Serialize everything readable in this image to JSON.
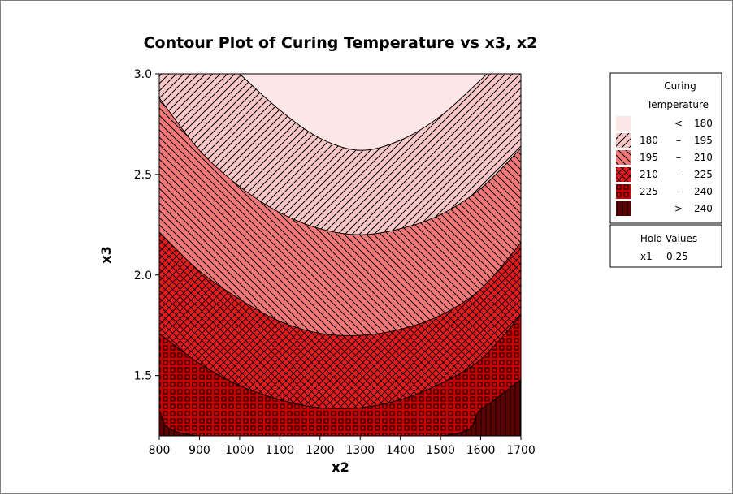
{
  "chart_data": {
    "type": "contour",
    "title": "Contour Plot of Curing Temperature vs x3, x2",
    "xlabel": "x2",
    "ylabel": "x3",
    "xlim": [
      800,
      1700
    ],
    "ylim": [
      1.2,
      3.0
    ],
    "x_ticks": [
      800,
      900,
      1000,
      1100,
      1200,
      1300,
      1400,
      1500,
      1600,
      1700
    ],
    "y_ticks": [
      1.5,
      2.0,
      2.5,
      3.0
    ],
    "y_tick_labels": [
      "1.5",
      "2.0",
      "2.5",
      "3.0"
    ],
    "grid": false,
    "legend_position": "right",
    "legend": {
      "title_line1": "Curing",
      "title_line2": "Temperature",
      "entries": [
        {
          "low": "",
          "sep": "<",
          "high": "180",
          "color": "#fde6e6",
          "pattern": "solid"
        },
        {
          "low": "180",
          "sep": "–",
          "high": "195",
          "color": "#f9c7c7",
          "pattern": "diag-fwd"
        },
        {
          "low": "195",
          "sep": "–",
          "high": "210",
          "color": "#f47878",
          "pattern": "diag-back"
        },
        {
          "low": "210",
          "sep": "–",
          "high": "225",
          "color": "#e61b1b",
          "pattern": "crosshatch"
        },
        {
          "low": "225",
          "sep": "–",
          "high": "240",
          "color": "#c80000",
          "pattern": "squares"
        },
        {
          "low": "",
          "sep": ">",
          "high": "240",
          "color": "#5e0000",
          "pattern": "vertical"
        }
      ]
    },
    "hold_values": {
      "title": "Hold Values",
      "variable": "x1",
      "value": "0.25"
    },
    "contours": [
      {
        "level": 180,
        "points": [
          [
            1000,
            3.0
          ],
          [
            1100,
            2.82
          ],
          [
            1200,
            2.68
          ],
          [
            1300,
            2.62
          ],
          [
            1400,
            2.67
          ],
          [
            1500,
            2.79
          ],
          [
            1600,
            2.97
          ],
          [
            1615,
            3.0
          ]
        ]
      },
      {
        "level": 195,
        "points": [
          [
            800,
            2.88
          ],
          [
            900,
            2.62
          ],
          [
            1000,
            2.44
          ],
          [
            1100,
            2.31
          ],
          [
            1200,
            2.23
          ],
          [
            1300,
            2.2
          ],
          [
            1400,
            2.23
          ],
          [
            1500,
            2.3
          ],
          [
            1600,
            2.43
          ],
          [
            1700,
            2.63
          ]
        ]
      },
      {
        "level": 210,
        "points": [
          [
            800,
            2.21
          ],
          [
            900,
            2.02
          ],
          [
            1000,
            1.88
          ],
          [
            1100,
            1.77
          ],
          [
            1200,
            1.71
          ],
          [
            1300,
            1.7
          ],
          [
            1400,
            1.73
          ],
          [
            1500,
            1.8
          ],
          [
            1600,
            1.93
          ],
          [
            1700,
            2.16
          ]
        ]
      },
      {
        "level": 225,
        "points": [
          [
            800,
            1.71
          ],
          [
            900,
            1.56
          ],
          [
            1000,
            1.45
          ],
          [
            1100,
            1.38
          ],
          [
            1200,
            1.34
          ],
          [
            1300,
            1.34
          ],
          [
            1400,
            1.38
          ],
          [
            1500,
            1.46
          ],
          [
            1600,
            1.58
          ],
          [
            1700,
            1.8
          ]
        ]
      },
      {
        "level": 240,
        "points": [
          [
            800,
            1.32
          ],
          [
            900,
            1.2
          ],
          [
            1500,
            1.2
          ],
          [
            1600,
            1.33
          ],
          [
            1700,
            1.48
          ]
        ]
      }
    ]
  }
}
